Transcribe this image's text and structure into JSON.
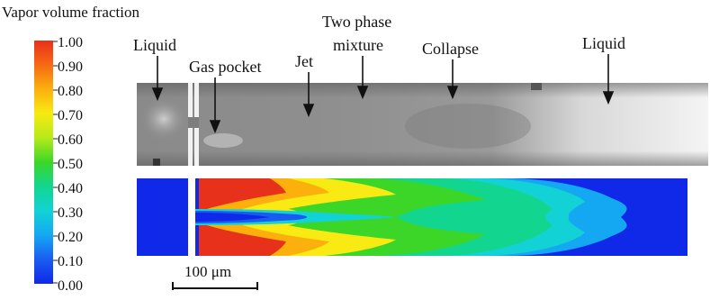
{
  "colorbar": {
    "title": "Vapor volume fraction",
    "ticks": [
      "1.00",
      "0.90",
      "0.80",
      "0.70",
      "0.60",
      "0.50",
      "0.40",
      "0.30",
      "0.20",
      "0.10",
      "0.00"
    ],
    "stops": [
      {
        "value": 1.0,
        "color": "#e8311a"
      },
      {
        "value": 0.9,
        "color": "#f56a14"
      },
      {
        "value": 0.8,
        "color": "#fbb00e"
      },
      {
        "value": 0.7,
        "color": "#f8ea12"
      },
      {
        "value": 0.6,
        "color": "#b6ea1a"
      },
      {
        "value": 0.5,
        "color": "#3cd628"
      },
      {
        "value": 0.4,
        "color": "#12d690"
      },
      {
        "value": 0.3,
        "color": "#12d2d6"
      },
      {
        "value": 0.2,
        "color": "#14a8f2"
      },
      {
        "value": 0.1,
        "color": "#1a5cf0"
      },
      {
        "value": 0.0,
        "color": "#1028e8"
      }
    ]
  },
  "annotations": {
    "liquid_left": "Liquid",
    "gas_pocket": "Gas pocket",
    "jet": "Jet",
    "two_phase_line1": "Two phase",
    "two_phase_line2": "mixture",
    "collapse": "Collapse",
    "liquid_right": "Liquid"
  },
  "scale_bar": {
    "label": "100 μm"
  }
}
